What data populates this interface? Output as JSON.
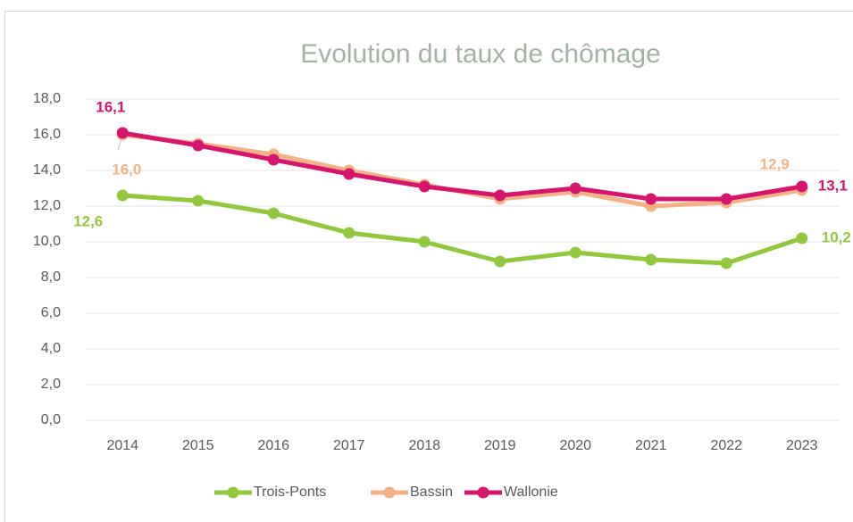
{
  "chart_data": {
    "type": "line",
    "title": "Evolution du taux de chômage",
    "categories": [
      "2014",
      "2015",
      "2016",
      "2017",
      "2018",
      "2019",
      "2020",
      "2021",
      "2022",
      "2023"
    ],
    "series": [
      {
        "name": "Trois-Ponts",
        "color": "#92c83e",
        "values": [
          12.6,
          12.3,
          11.6,
          10.5,
          10.0,
          8.9,
          9.4,
          9.0,
          8.8,
          10.2
        ],
        "value_labels": [
          "12,6",
          null,
          null,
          null,
          null,
          null,
          null,
          null,
          null,
          "10,2"
        ]
      },
      {
        "name": "Bassin",
        "color": "#f4b183",
        "values": [
          16.0,
          15.5,
          14.9,
          14.0,
          13.2,
          12.4,
          12.8,
          12.0,
          12.2,
          12.9
        ],
        "value_labels": [
          "16,0",
          null,
          null,
          null,
          null,
          null,
          null,
          null,
          null,
          "12,9"
        ]
      },
      {
        "name": "Wallonie",
        "color": "#d6156f",
        "values": [
          16.1,
          15.4,
          14.6,
          13.8,
          13.1,
          12.6,
          13.0,
          12.4,
          12.4,
          13.1
        ],
        "value_labels": [
          "16,1",
          null,
          null,
          null,
          null,
          null,
          null,
          null,
          null,
          "13,1"
        ]
      }
    ],
    "ylim": [
      0,
      18
    ],
    "yticks": [
      {
        "value": 0,
        "label": "0,0"
      },
      {
        "value": 2,
        "label": "2,0"
      },
      {
        "value": 4,
        "label": "4,0"
      },
      {
        "value": 6,
        "label": "6,0"
      },
      {
        "value": 8,
        "label": "8,0"
      },
      {
        "value": 10,
        "label": "10,0"
      },
      {
        "value": 12,
        "label": "12,0"
      },
      {
        "value": 14,
        "label": "14,0"
      },
      {
        "value": 16,
        "label": "16,0"
      },
      {
        "value": 18,
        "label": "18,0"
      }
    ],
    "grid": true,
    "legend": "bottom"
  }
}
